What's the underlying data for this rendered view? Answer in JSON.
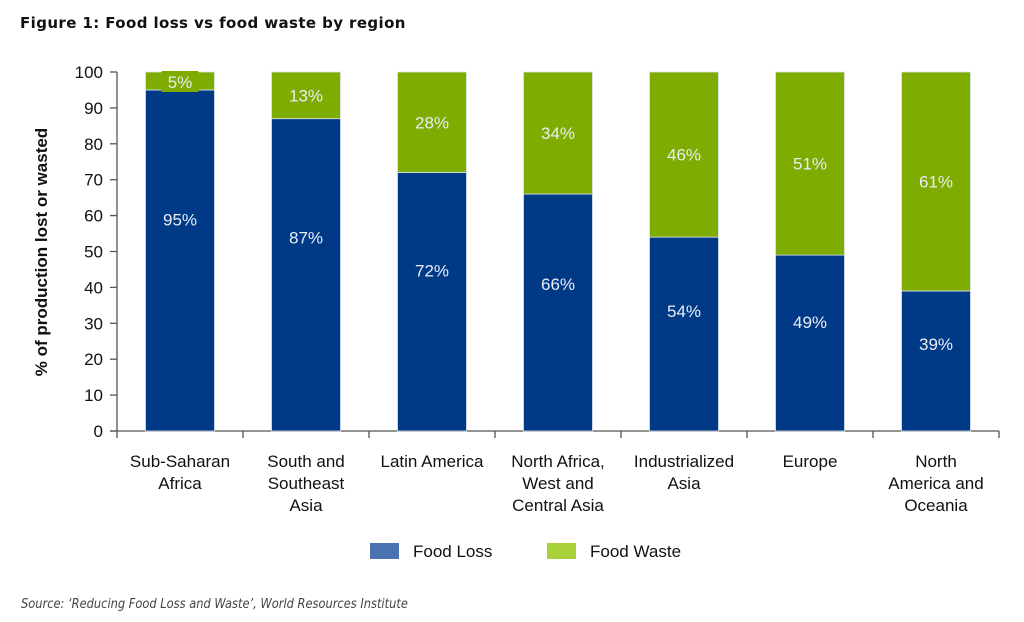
{
  "chart_data": {
    "type": "bar",
    "stacked": true,
    "title": "Figure 1: Food loss vs food waste by region",
    "xlabel": "",
    "ylabel": "% of production lost or wasted",
    "ylim": [
      0,
      100
    ],
    "yticks": [
      0,
      10,
      20,
      30,
      40,
      50,
      60,
      70,
      80,
      90,
      100
    ],
    "grid": false,
    "legend_position": "bottom-center",
    "categories": [
      [
        "Sub-Saharan",
        "Africa"
      ],
      [
        "South and",
        "Southeast",
        "Asia"
      ],
      [
        "Latin America"
      ],
      [
        "North Africa,",
        "West and",
        "Central Asia"
      ],
      [
        "Industrialized",
        "Asia"
      ],
      [
        "Europe"
      ],
      [
        "North",
        "America and",
        "Oceania"
      ]
    ],
    "series": [
      {
        "name": "Food Loss",
        "color": "#003a87",
        "legend_color": "#4a72b0",
        "values": [
          95,
          87,
          72,
          66,
          54,
          49,
          39
        ],
        "labels": [
          "95%",
          "87%",
          "72%",
          "66%",
          "54%",
          "49%",
          "39%"
        ]
      },
      {
        "name": "Food Waste",
        "color": "#7fac00",
        "legend_color": "#a9d13c",
        "values": [
          5,
          13,
          28,
          34,
          46,
          51,
          61
        ],
        "labels": [
          "5%",
          "13%",
          "28%",
          "34%",
          "46%",
          "51%",
          "61%"
        ]
      }
    ],
    "source": "Source: ‘Reducing Food Loss and Waste’, World Resources Institute"
  }
}
